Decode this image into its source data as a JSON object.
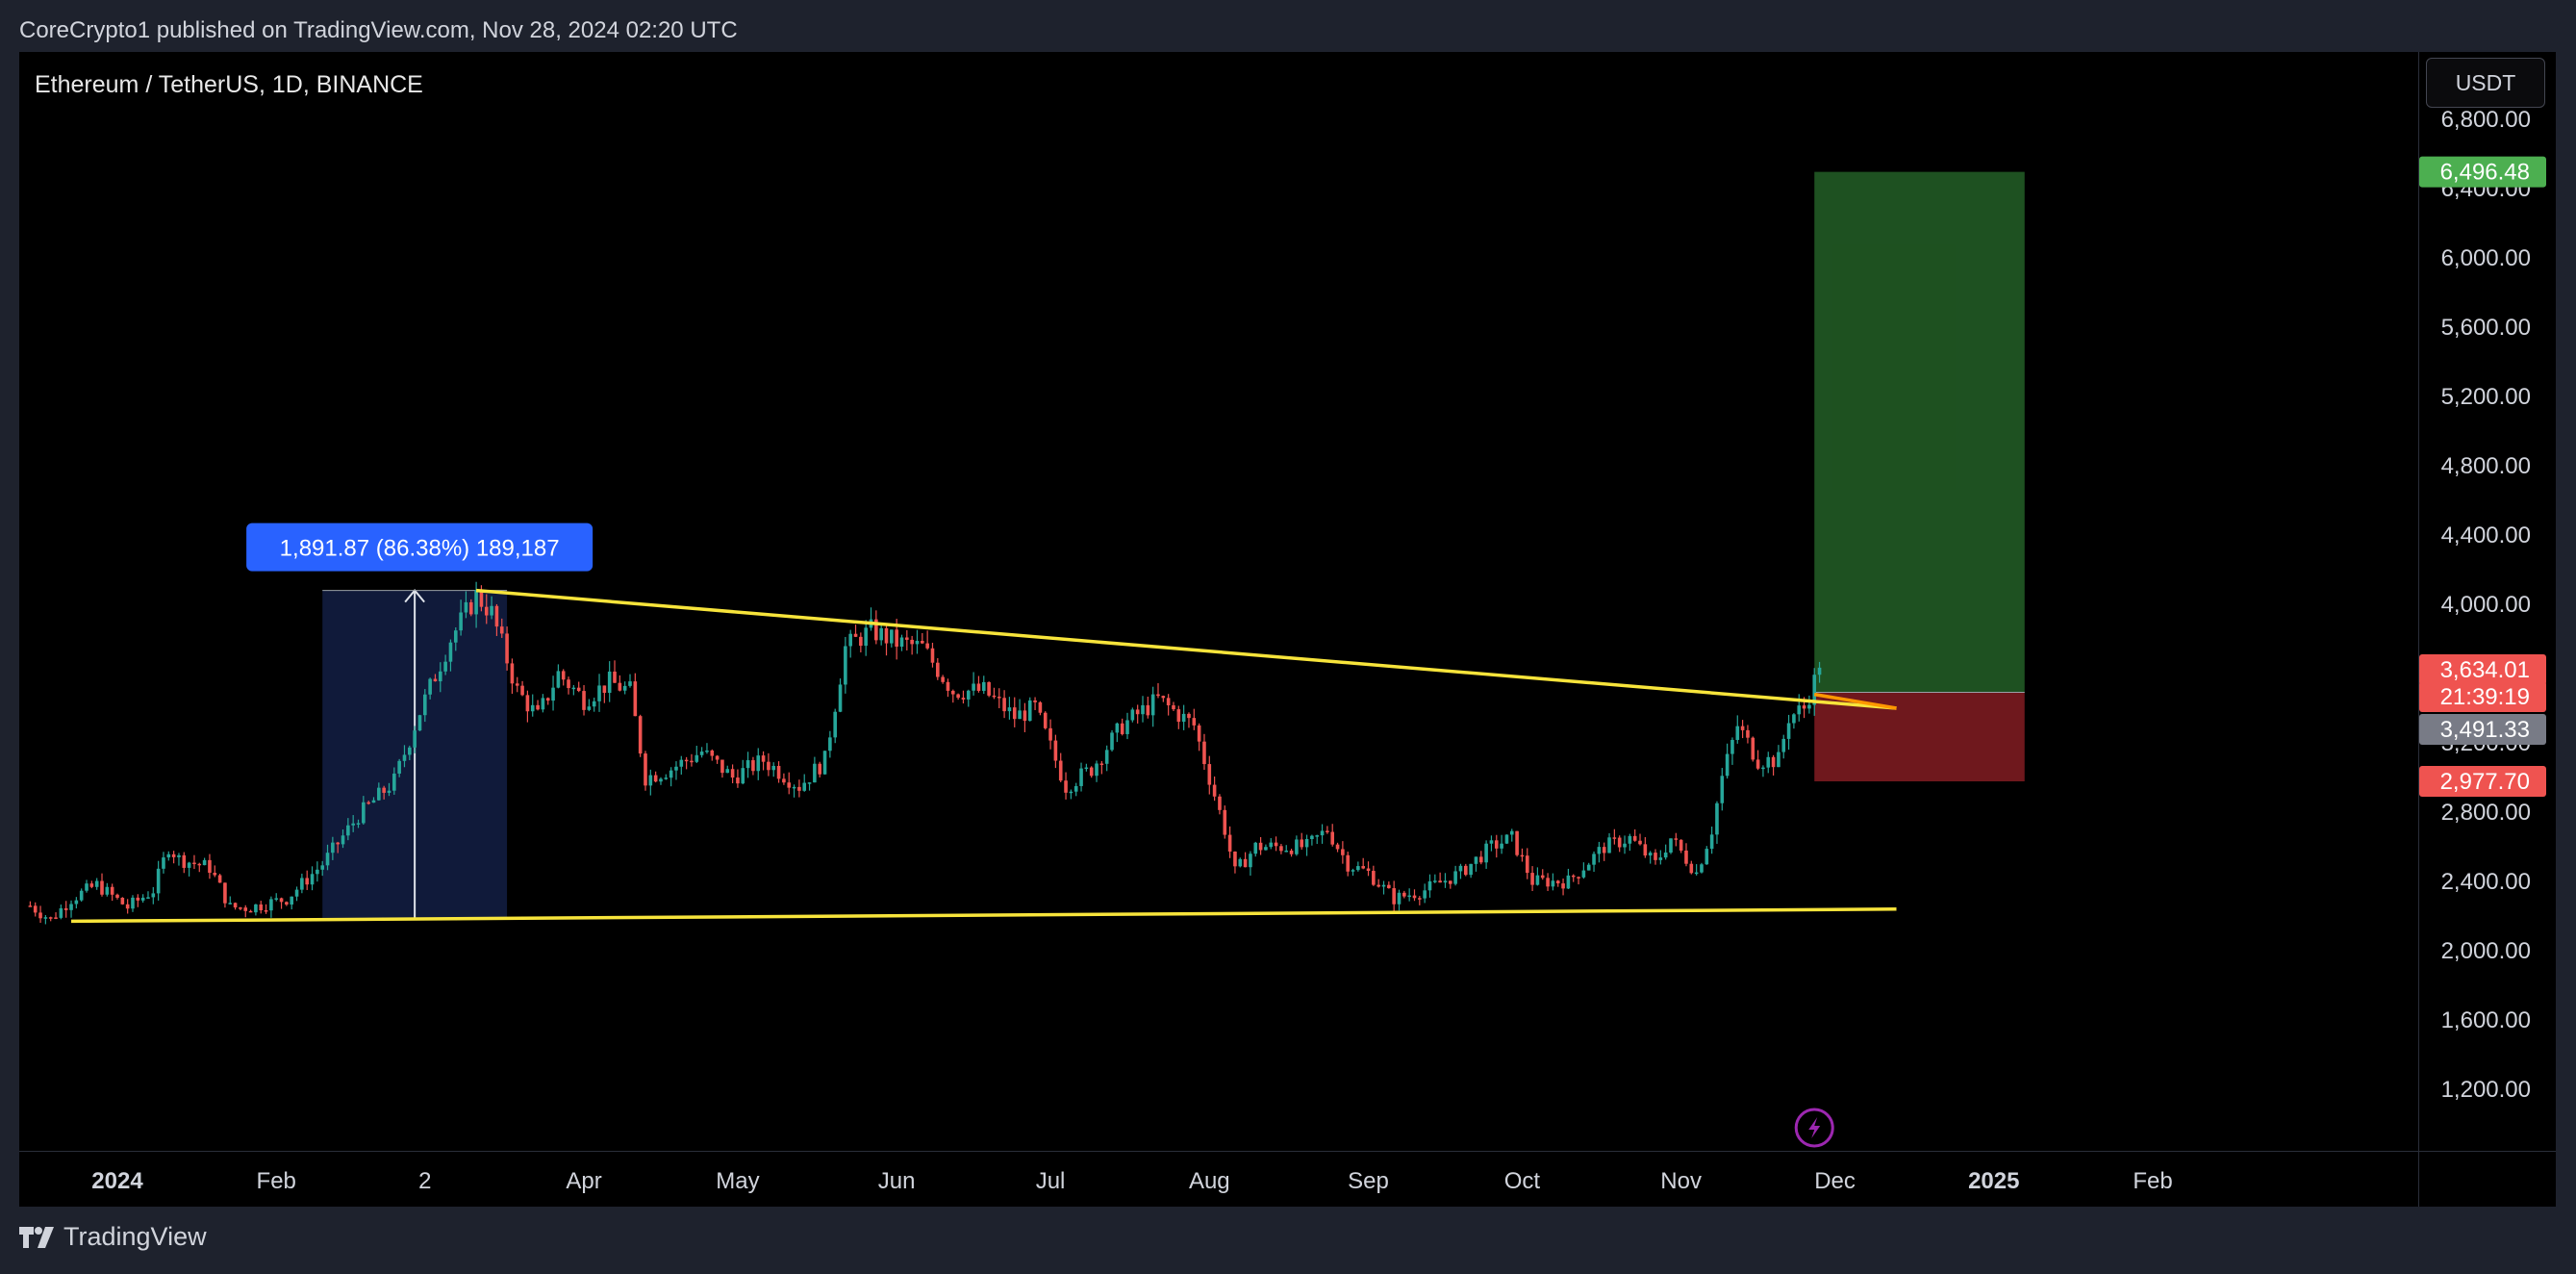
{
  "header": {
    "published": "CoreCrypto1 published on TradingView.com, Nov 28, 2024 02:20 UTC"
  },
  "symbol": {
    "title": "Ethereum / TetherUS, 1D, BINANCE"
  },
  "currency_button": "USDT",
  "footer": {
    "brand": "TradingView"
  },
  "colors": {
    "up": "#26a69a",
    "down": "#ef5350",
    "trendline": "#f7e43b",
    "target_zone": "#2e7d32",
    "stop_zone": "#8b1e24",
    "measure_box": "#101a3a",
    "measure_label": "#2962ff",
    "lightning": "#9c27b0"
  },
  "chart_data": {
    "type": "candlestick",
    "title": "Ethereum / TetherUS, 1D, BINANCE",
    "y_ticks": [
      "1,200.00",
      "1,600.00",
      "2,000.00",
      "2,400.00",
      "2,800.00",
      "3,200.00",
      "3,600.00",
      "4,000.00",
      "4,400.00",
      "4,800.00",
      "5,200.00",
      "5,600.00",
      "6,000.00",
      "6,400.00",
      "6,800.00"
    ],
    "y_tick_values": [
      1200,
      1600,
      2000,
      2400,
      2800,
      3200,
      3600,
      4000,
      4400,
      4800,
      5200,
      5600,
      6000,
      6400,
      6800
    ],
    "x_ticks": [
      {
        "label": "2024",
        "bold": true,
        "date": "2024-01-01"
      },
      {
        "label": "Feb",
        "bold": false,
        "date": "2024-02-01"
      },
      {
        "label": "2",
        "bold": false,
        "date": "2024-03-01"
      },
      {
        "label": "Apr",
        "bold": false,
        "date": "2024-04-01"
      },
      {
        "label": "May",
        "bold": false,
        "date": "2024-05-01"
      },
      {
        "label": "Jun",
        "bold": false,
        "date": "2024-06-01"
      },
      {
        "label": "Jul",
        "bold": false,
        "date": "2024-07-01"
      },
      {
        "label": "Aug",
        "bold": false,
        "date": "2024-08-01"
      },
      {
        "label": "Sep",
        "bold": false,
        "date": "2024-09-01"
      },
      {
        "label": "Oct",
        "bold": false,
        "date": "2024-10-01"
      },
      {
        "label": "Nov",
        "bold": false,
        "date": "2024-11-01"
      },
      {
        "label": "Dec",
        "bold": false,
        "date": "2024-12-01"
      },
      {
        "label": "2025",
        "bold": true,
        "date": "2025-01-01"
      },
      {
        "label": "Feb",
        "bold": false,
        "date": "2025-02-01"
      }
    ],
    "price_path": [
      [
        "2023-12-15",
        2260
      ],
      [
        "2023-12-19",
        2180
      ],
      [
        "2023-12-23",
        2300
      ],
      [
        "2023-12-28",
        2380
      ],
      [
        "2024-01-03",
        2250
      ],
      [
        "2024-01-08",
        2350
      ],
      [
        "2024-01-11",
        2600
      ],
      [
        "2024-01-13",
        2530
      ],
      [
        "2024-01-19",
        2480
      ],
      [
        "2024-01-23",
        2250
      ],
      [
        "2024-01-27",
        2250
      ],
      [
        "2024-02-03",
        2300
      ],
      [
        "2024-02-10",
        2500
      ],
      [
        "2024-02-17",
        2780
      ],
      [
        "2024-02-24",
        2980
      ],
      [
        "2024-02-29",
        3380
      ],
      [
        "2024-03-06",
        3800
      ],
      [
        "2024-03-11",
        4050
      ],
      [
        "2024-03-14",
        3950
      ],
      [
        "2024-03-19",
        3500
      ],
      [
        "2024-03-23",
        3350
      ],
      [
        "2024-03-27",
        3600
      ],
      [
        "2024-04-01",
        3450
      ],
      [
        "2024-04-06",
        3550
      ],
      [
        "2024-04-10",
        3500
      ],
      [
        "2024-04-13",
        3000
      ],
      [
        "2024-04-18",
        3050
      ],
      [
        "2024-04-24",
        3150
      ],
      [
        "2024-04-30",
        3000
      ],
      [
        "2024-05-06",
        3100
      ],
      [
        "2024-05-13",
        2950
      ],
      [
        "2024-05-18",
        3100
      ],
      [
        "2024-05-22",
        3750
      ],
      [
        "2024-05-27",
        3850
      ],
      [
        "2024-06-01",
        3780
      ],
      [
        "2024-06-06",
        3750
      ],
      [
        "2024-06-12",
        3500
      ],
      [
        "2024-06-18",
        3500
      ],
      [
        "2024-06-24",
        3350
      ],
      [
        "2024-06-28",
        3400
      ],
      [
        "2024-07-04",
        2950
      ],
      [
        "2024-07-09",
        3050
      ],
      [
        "2024-07-15",
        3300
      ],
      [
        "2024-07-22",
        3450
      ],
      [
        "2024-07-29",
        3300
      ],
      [
        "2024-08-04",
        2700
      ],
      [
        "2024-08-06",
        2450
      ],
      [
        "2024-08-10",
        2600
      ],
      [
        "2024-08-15",
        2600
      ],
      [
        "2024-08-20",
        2600
      ],
      [
        "2024-08-24",
        2700
      ],
      [
        "2024-08-28",
        2500
      ],
      [
        "2024-09-01",
        2450
      ],
      [
        "2024-09-06",
        2300
      ],
      [
        "2024-09-12",
        2350
      ],
      [
        "2024-09-19",
        2450
      ],
      [
        "2024-09-25",
        2600
      ],
      [
        "2024-09-29",
        2650
      ],
      [
        "2024-10-03",
        2400
      ],
      [
        "2024-10-10",
        2400
      ],
      [
        "2024-10-17",
        2600
      ],
      [
        "2024-10-22",
        2650
      ],
      [
        "2024-10-27",
        2500
      ],
      [
        "2024-10-30",
        2650
      ],
      [
        "2024-11-04",
        2450
      ],
      [
        "2024-11-07",
        2700
      ],
      [
        "2024-11-09",
        3000
      ],
      [
        "2024-11-12",
        3300
      ],
      [
        "2024-11-16",
        3100
      ],
      [
        "2024-11-20",
        3100
      ],
      [
        "2024-11-22",
        3350
      ],
      [
        "2024-11-25",
        3400
      ],
      [
        "2024-11-28",
        3634
      ]
    ],
    "trendlines": [
      {
        "name": "resistance",
        "from": [
          "2024-03-11",
          4080
        ],
        "to": [
          "2024-12-13",
          3400
        ]
      },
      {
        "name": "support",
        "from": [
          "2023-12-23",
          2170
        ],
        "to": [
          "2024-12-13",
          2240
        ]
      }
    ],
    "measure": {
      "label": "1,891.87 (86.38%) 189,187",
      "from_date": "2024-02-10",
      "to_date": "2024-03-17",
      "low": 2190,
      "high": 4080
    },
    "position": {
      "from_date": "2024-11-27",
      "to_date": "2025-01-07",
      "target": 6496.48,
      "entry": 3491.33,
      "stop": 2977.7
    },
    "price_labels": [
      {
        "value": "6,496.48",
        "price": 6496.48,
        "color": "#4caf50"
      },
      {
        "value": "3,634.01",
        "price": 3700,
        "color": "#ef5350"
      },
      {
        "value": "21:39:19",
        "price": 3505,
        "color": "#ef5350"
      },
      {
        "value": "3,491.33",
        "price": 3380,
        "color": "#787b86"
      },
      {
        "value": "2,977.70",
        "price": 2977.7,
        "color": "#ef5350"
      }
    ]
  }
}
